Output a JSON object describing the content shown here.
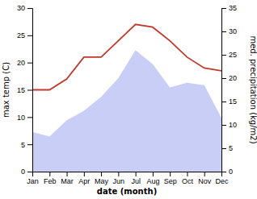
{
  "chart_data": {
    "type": "line",
    "categories": [
      "Jan",
      "Feb",
      "Mar",
      "Apr",
      "May",
      "Jun",
      "Jul",
      "Aug",
      "Sep",
      "Oct",
      "Nov",
      "Dec"
    ],
    "xlabel": "date (month)",
    "ylabel": "max temp (C)",
    "y2label": "med. precipitation (kg/m2)",
    "ylim": [
      0,
      30
    ],
    "yticks": [
      0,
      5,
      10,
      15,
      20,
      25,
      30
    ],
    "y2lim": [
      0,
      35
    ],
    "y2ticks": [
      0,
      5,
      10,
      15,
      20,
      25,
      30,
      35
    ],
    "grid": false,
    "series": [
      {
        "type": "area",
        "axis": "y2",
        "color": "#c8cef5",
        "values": [
          8.5,
          7.5,
          11.0,
          13.0,
          16.0,
          20.0,
          26.0,
          23.0,
          18.0,
          19.0,
          18.5,
          11.5
        ]
      },
      {
        "type": "line",
        "color": "#c0392b",
        "values": [
          15.0,
          15.0,
          17.0,
          21.0,
          21.0,
          24.0,
          27.0,
          26.5,
          24.0,
          21.0,
          19.0,
          18.5
        ]
      }
    ]
  }
}
